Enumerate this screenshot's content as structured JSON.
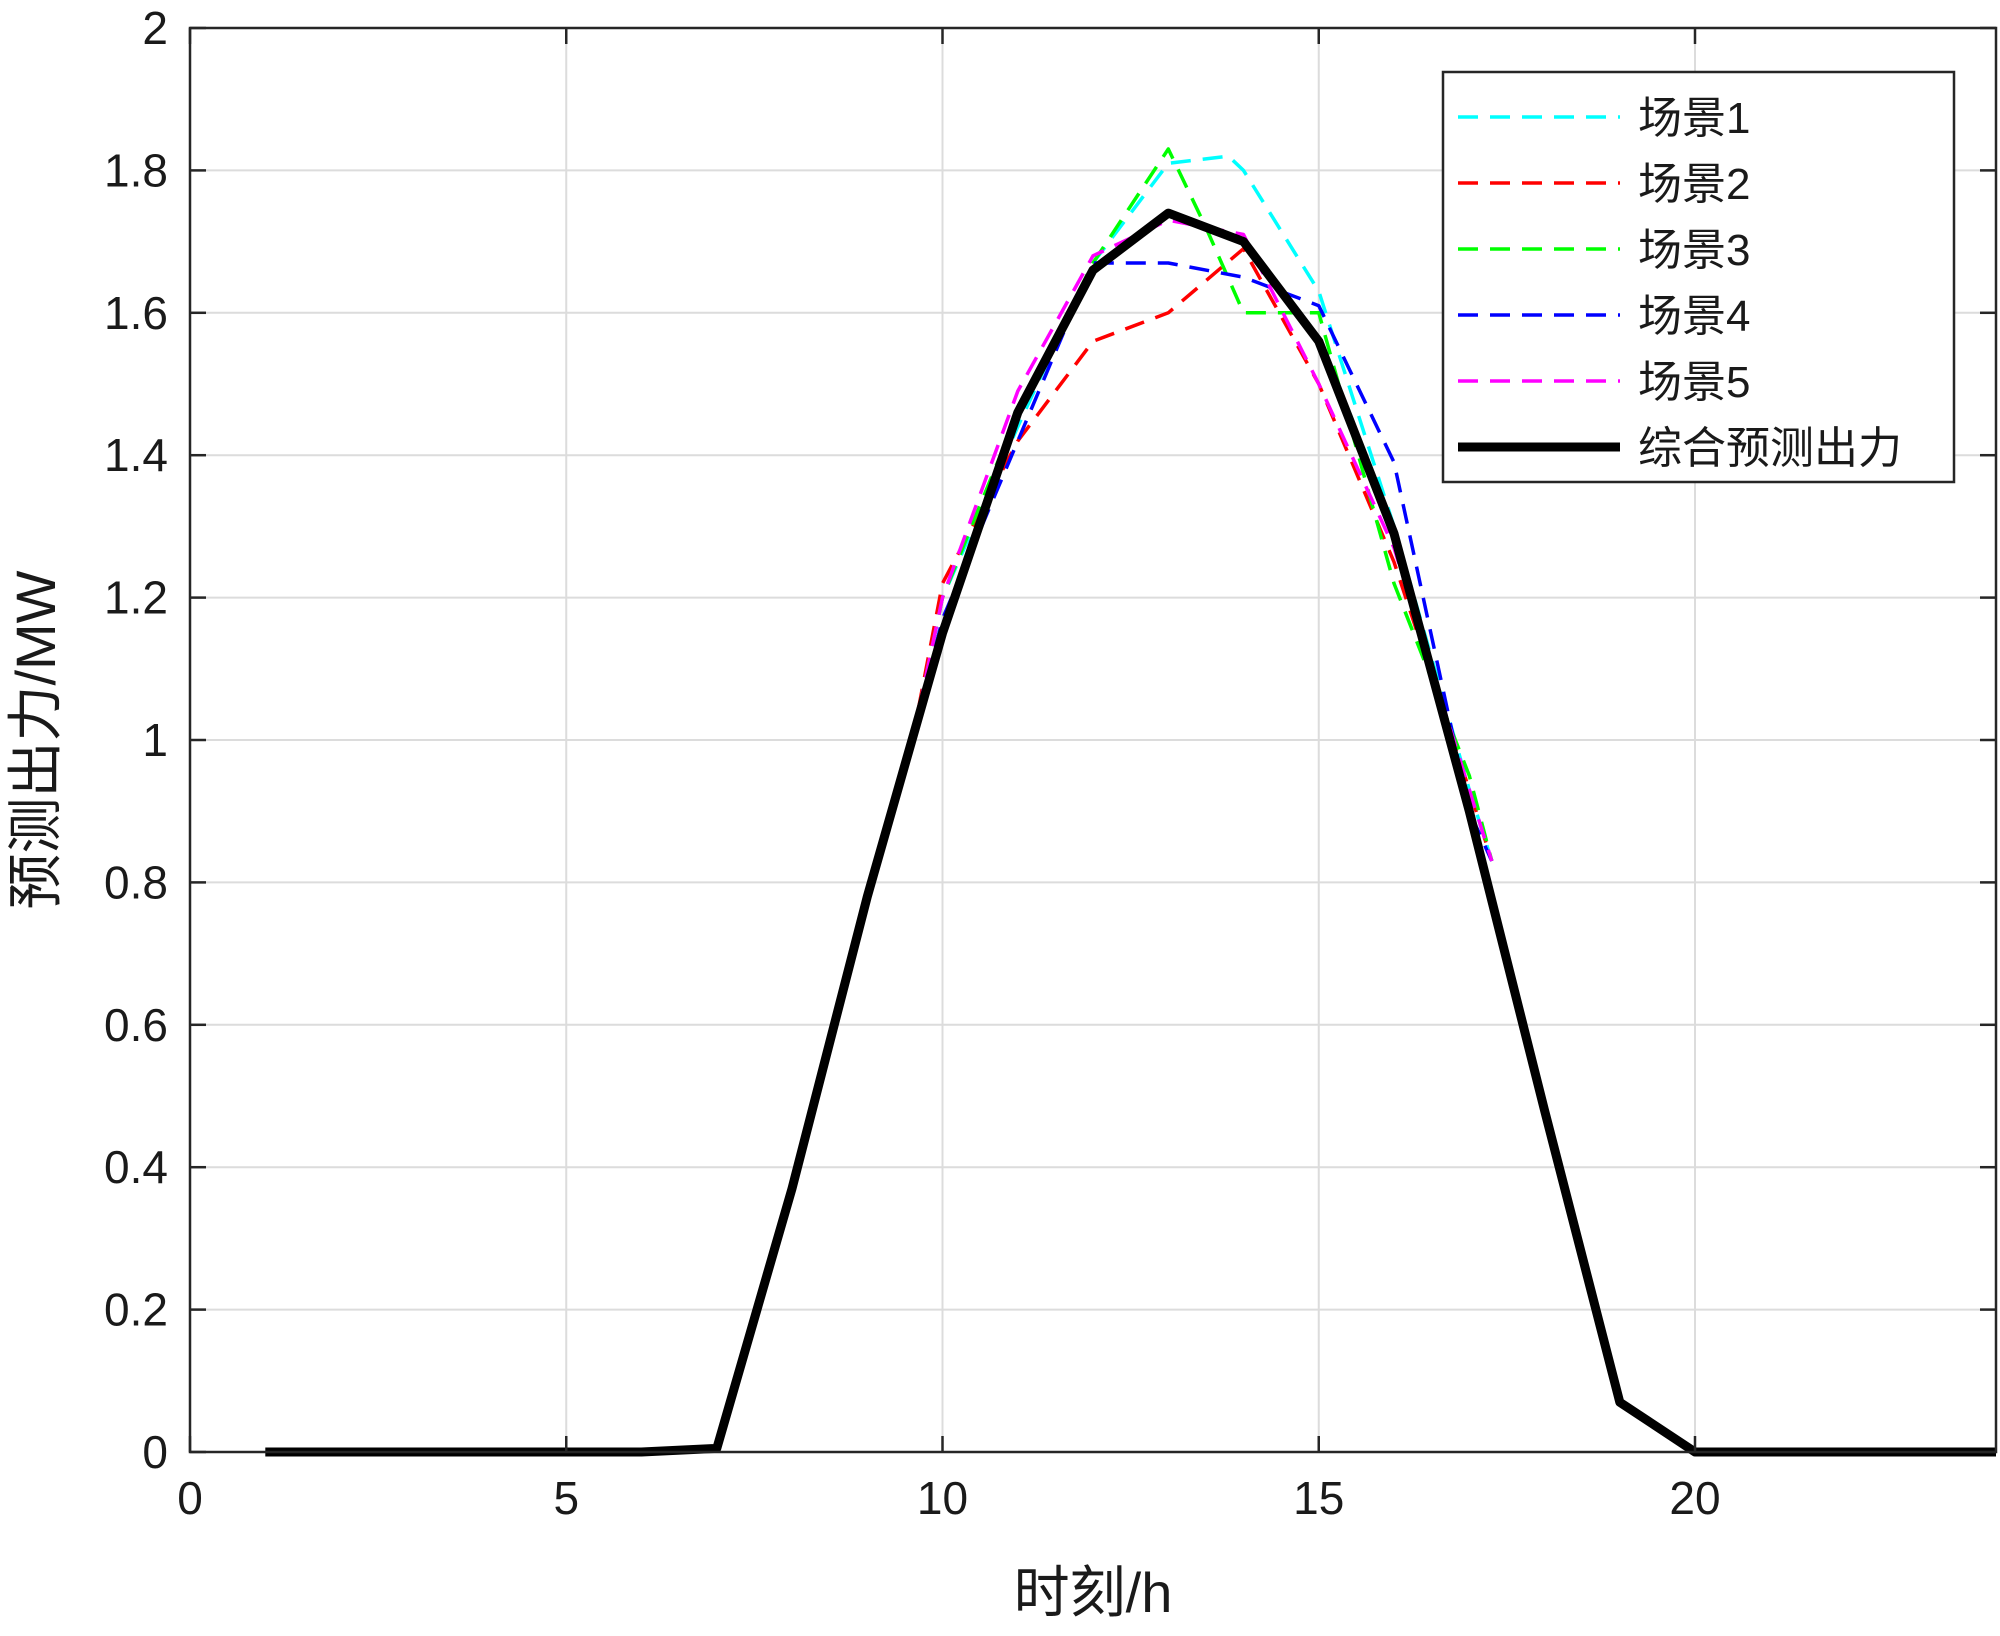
{
  "chart_data": {
    "type": "line",
    "xlabel": "时刻/h",
    "ylabel": "预测出力/MW",
    "xlim": [
      0,
      24
    ],
    "ylim": [
      0,
      2
    ],
    "xticks": [
      0,
      5,
      10,
      15,
      20
    ],
    "yticks": [
      0,
      0.2,
      0.4,
      0.6,
      0.8,
      1,
      1.2,
      1.4,
      1.6,
      1.8,
      2
    ],
    "grid": true,
    "legend_position": "top-right",
    "series": [
      {
        "name": "场景1",
        "color": "#00ffff",
        "style": "dashed",
        "x": [
          9.6,
          10,
          11,
          12,
          13,
          13.8,
          14,
          15,
          16,
          17,
          17.3
        ],
        "y": [
          1.0,
          1.2,
          1.44,
          1.67,
          1.81,
          1.82,
          1.8,
          1.63,
          1.3,
          0.93,
          0.83
        ]
      },
      {
        "name": "场景2",
        "color": "#ff0000",
        "style": "dashed",
        "x": [
          9.6,
          10,
          11,
          12,
          13,
          14,
          15,
          16,
          17,
          17.3
        ],
        "y": [
          1.0,
          1.22,
          1.42,
          1.56,
          1.6,
          1.69,
          1.5,
          1.25,
          0.93,
          0.83
        ]
      },
      {
        "name": "场景3",
        "color": "#00ff00",
        "style": "dashed",
        "x": [
          9.6,
          10,
          11,
          12,
          13,
          13.5,
          14,
          15,
          16,
          17,
          17.3
        ],
        "y": [
          1.0,
          1.2,
          1.46,
          1.67,
          1.83,
          1.72,
          1.6,
          1.6,
          1.22,
          0.95,
          0.83
        ]
      },
      {
        "name": "场景4",
        "color": "#0000ff",
        "style": "dashed",
        "x": [
          9.6,
          10,
          11,
          12,
          13,
          14,
          15,
          16,
          17,
          17.3
        ],
        "y": [
          1.0,
          1.17,
          1.42,
          1.67,
          1.67,
          1.65,
          1.61,
          1.39,
          0.9,
          0.83
        ]
      },
      {
        "name": "场景5",
        "color": "#ff00ff",
        "style": "dashed",
        "x": [
          9.6,
          10,
          11,
          12,
          13,
          14,
          15,
          16,
          17,
          17.3
        ],
        "y": [
          1.0,
          1.2,
          1.49,
          1.68,
          1.73,
          1.71,
          1.5,
          1.27,
          0.93,
          0.83
        ]
      },
      {
        "name": "综合预测出力",
        "color": "#000000",
        "style": "solid",
        "x": [
          1,
          2,
          3,
          4,
          5,
          6,
          7,
          8,
          9,
          10,
          11,
          12,
          13,
          14,
          15,
          16,
          17,
          18,
          19,
          20,
          21,
          22,
          23,
          24
        ],
        "y": [
          0,
          0,
          0,
          0,
          0,
          0,
          0.005,
          0.37,
          0.78,
          1.15,
          1.46,
          1.66,
          1.74,
          1.7,
          1.56,
          1.29,
          0.9,
          0.48,
          0.07,
          0,
          0,
          0,
          0,
          0
        ]
      }
    ]
  }
}
